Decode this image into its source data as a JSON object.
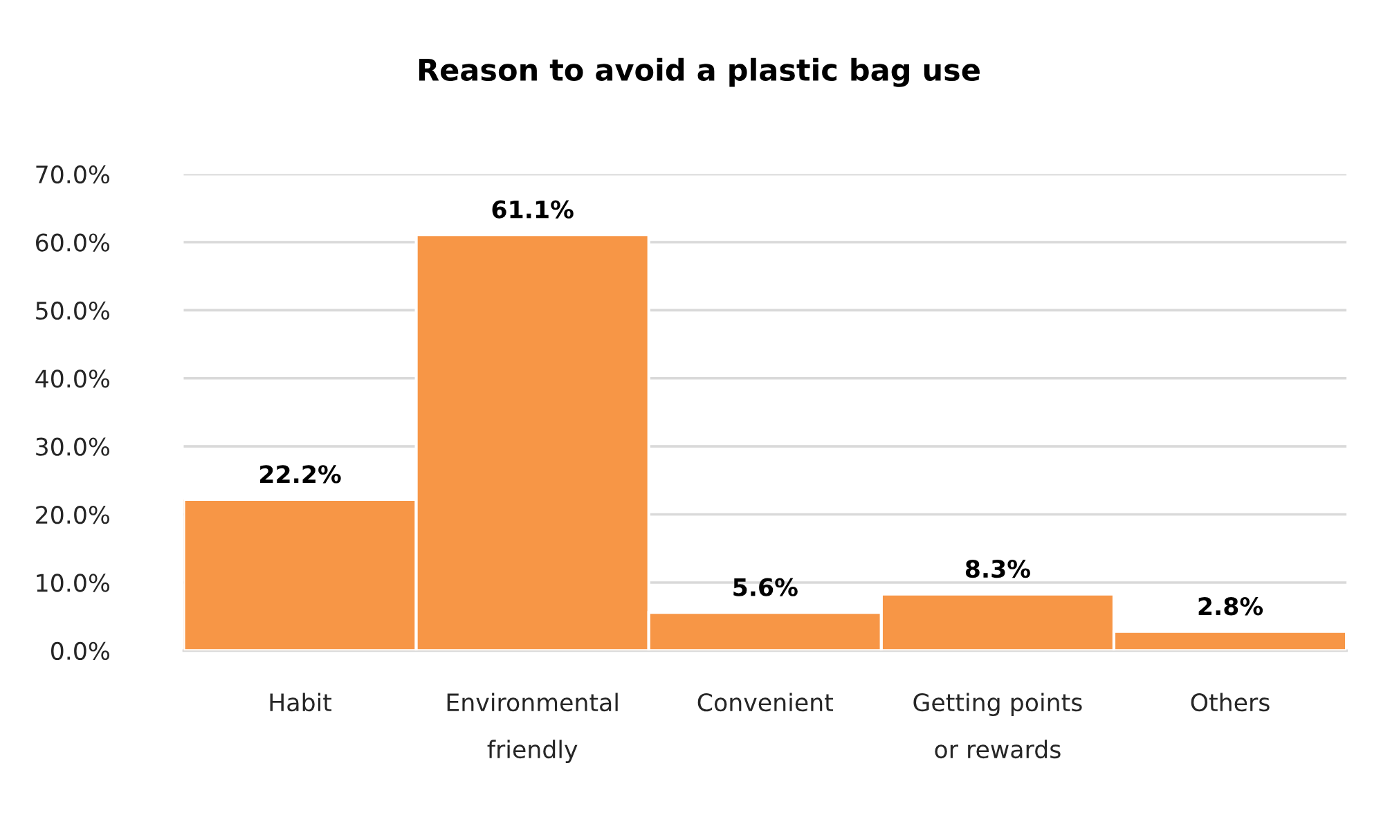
{
  "chart_data": {
    "type": "bar",
    "title": "Reason to avoid a plastic bag use",
    "categories": [
      "Habit",
      "Environmental\nfriendly",
      "Convenient",
      "Getting points\nor rewards",
      "Others"
    ],
    "values": [
      22.2,
      61.1,
      5.6,
      8.3,
      2.8
    ],
    "value_labels": [
      "22.2%",
      "61.1%",
      "5.6%",
      "8.3%",
      "2.8%"
    ],
    "color": "#f79646",
    "ylim": [
      0,
      70
    ],
    "yticks": [
      {
        "value": 0,
        "label": "0.0%"
      },
      {
        "value": 10,
        "label": "10.0%"
      },
      {
        "value": 20,
        "label": "20.0%"
      },
      {
        "value": 30,
        "label": "30.0%"
      },
      {
        "value": 40,
        "label": "40.0%"
      },
      {
        "value": 50,
        "label": "50.0%"
      },
      {
        "value": 60,
        "label": "60.0%"
      },
      {
        "value": 70,
        "label": "70.0%"
      }
    ],
    "grid": "y",
    "legend": false
  }
}
